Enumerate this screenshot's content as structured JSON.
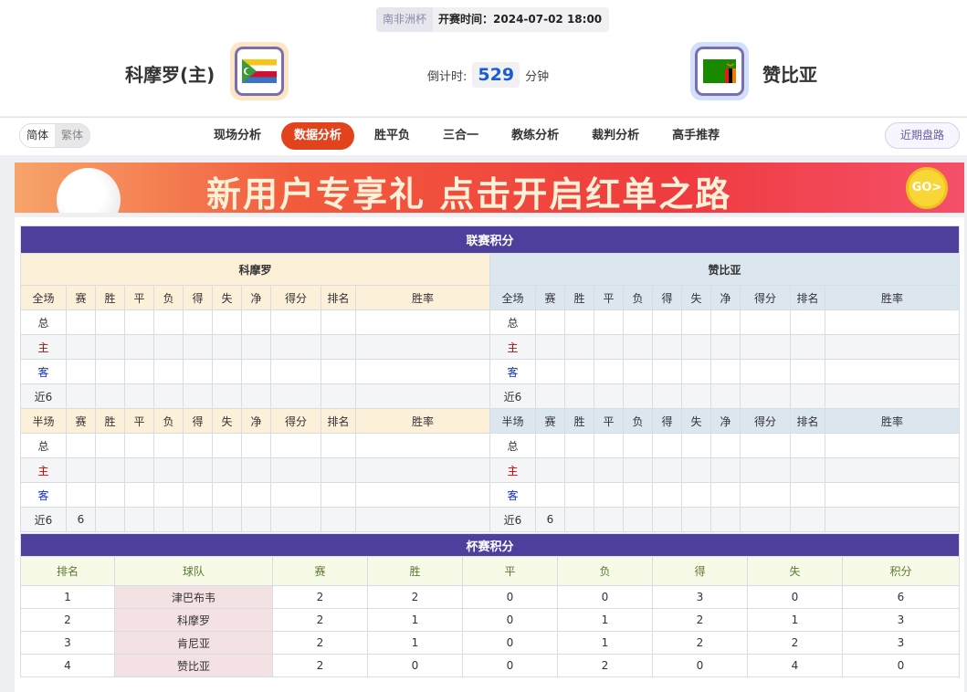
{
  "match": {
    "league": "南非洲杯",
    "time_label": "开赛时间：2024-07-02 18:00",
    "home": "科摩罗(主)",
    "away": "赞比亚",
    "countdown_label": "倒计时:",
    "countdown": "529",
    "countdown_unit": "分钟"
  },
  "lang": {
    "simplified": "简体",
    "traditional": "繁体"
  },
  "tabs": [
    "现场分析",
    "数据分析",
    "胜平负",
    "三合一",
    "教练分析",
    "裁判分析",
    "高手推荐"
  ],
  "active_tab": "数据分析",
  "recent_button": "近期盘路",
  "banner": {
    "text": "新用户专享礼 点击开启红单之路",
    "go": "GO>"
  },
  "league_table": {
    "title": "联赛积分",
    "home_team": "科摩罗",
    "away_team": "赞比亚",
    "full_cols": [
      "全场",
      "赛",
      "胜",
      "平",
      "负",
      "得",
      "失",
      "净",
      "得分",
      "排名",
      "胜率"
    ],
    "half_cols": [
      "半场",
      "赛",
      "胜",
      "平",
      "负",
      "得",
      "失",
      "净",
      "得分",
      "排名",
      "胜率"
    ],
    "rows": [
      "总",
      "主",
      "客",
      "近6"
    ],
    "half_recent_played": "6"
  },
  "cup_table": {
    "title": "杯赛积分",
    "cols": [
      "排名",
      "球队",
      "赛",
      "胜",
      "平",
      "负",
      "得",
      "失",
      "积分"
    ],
    "rows": [
      [
        "1",
        "津巴布韦",
        "2",
        "2",
        "0",
        "0",
        "3",
        "0",
        "6"
      ],
      [
        "2",
        "科摩罗",
        "2",
        "1",
        "0",
        "1",
        "2",
        "1",
        "3"
      ],
      [
        "3",
        "肯尼亚",
        "2",
        "1",
        "0",
        "1",
        "2",
        "2",
        "3"
      ],
      [
        "4",
        "赞比亚",
        "2",
        "0",
        "0",
        "2",
        "0",
        "4",
        "0"
      ]
    ]
  },
  "colors": {
    "purple": "#4f3f9c",
    "active_tab": "#e3431c",
    "home_bg": "#fdf0d8",
    "away_bg": "#dce6ef"
  }
}
